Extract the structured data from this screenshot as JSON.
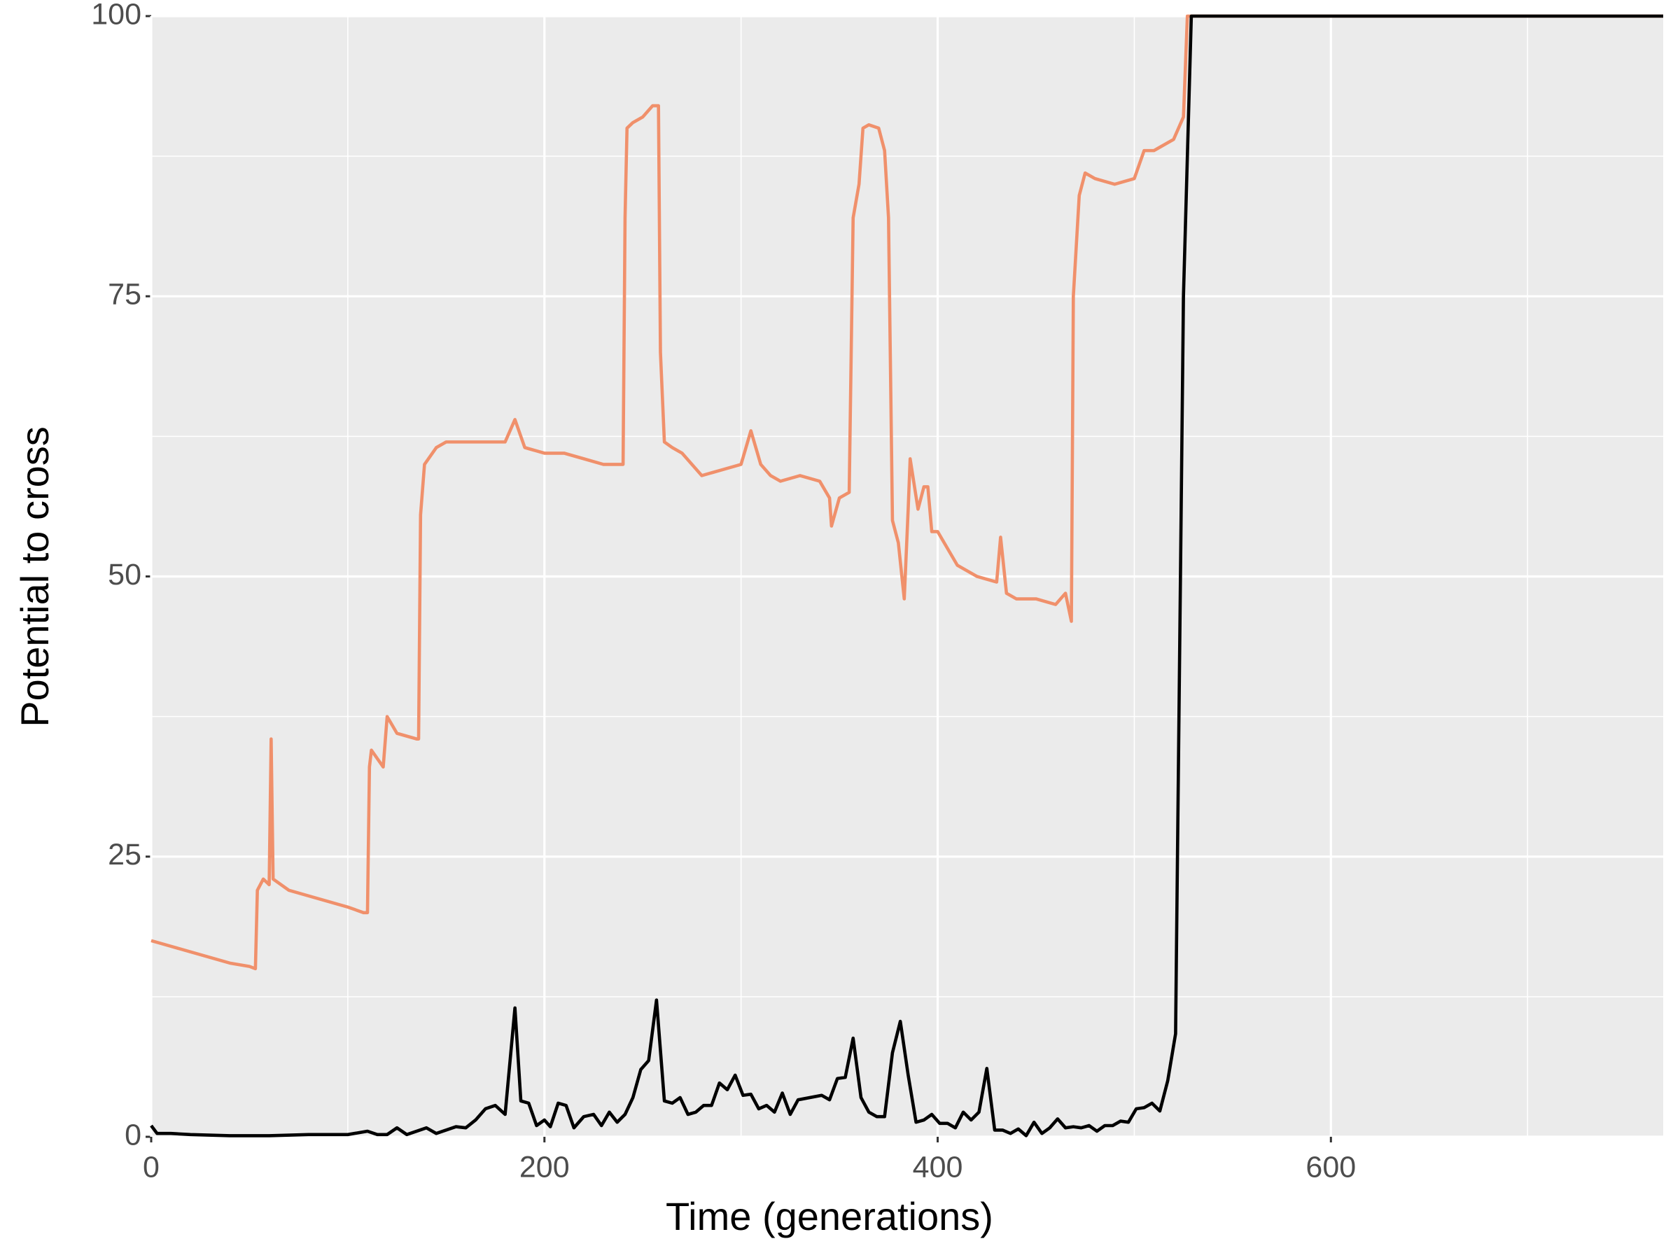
{
  "chart_data": {
    "type": "line",
    "x_label": "Time (generations)",
    "y_label": "Potential to cross",
    "xlim": [
      0,
      769
    ],
    "ylim": [
      0,
      100
    ],
    "xticks": [
      0,
      200,
      400,
      600
    ],
    "yticks": [
      0,
      25,
      50,
      75,
      100
    ],
    "grid": true,
    "series": [
      {
        "color": "#f0906b",
        "x": [
          0,
          10,
          20,
          30,
          40,
          50,
          53,
          54,
          57,
          60,
          61,
          62,
          70,
          80,
          90,
          100,
          108,
          110,
          111,
          112,
          118,
          120,
          125,
          135,
          136,
          137,
          139,
          145,
          150,
          160,
          170,
          180,
          185,
          190,
          200,
          210,
          220,
          230,
          240,
          241,
          242,
          245,
          250,
          255,
          258,
          259,
          261,
          265,
          270,
          280,
          290,
          300,
          305,
          310,
          315,
          320,
          330,
          340,
          345,
          346,
          350,
          355,
          357,
          360,
          362,
          365,
          370,
          373,
          375,
          377,
          380,
          383,
          385,
          386,
          390,
          393,
          395,
          397,
          400,
          405,
          410,
          420,
          430,
          432,
          435,
          440,
          450,
          460,
          465,
          468,
          469,
          472,
          475,
          480,
          490,
          500,
          505,
          510,
          520,
          525,
          527,
          769
        ],
        "values": [
          17.5,
          17,
          16.5,
          16,
          15.5,
          15.2,
          15,
          22,
          23,
          22.5,
          35.5,
          23,
          22,
          21.5,
          21,
          20.5,
          20,
          20,
          33,
          34.5,
          33,
          37.5,
          36,
          35.5,
          35.5,
          55.5,
          60,
          61.5,
          62,
          62,
          62,
          62,
          64,
          61.5,
          61,
          61,
          60.5,
          60,
          60,
          82,
          90,
          90.5,
          91,
          92,
          92,
          70,
          62,
          61.5,
          61,
          59,
          59.5,
          60,
          63,
          60,
          59,
          58.5,
          59,
          58.5,
          57,
          54.5,
          57,
          57.5,
          82,
          85,
          90,
          90.3,
          90,
          88,
          82,
          55,
          53,
          48,
          56,
          60.5,
          56,
          58,
          58,
          54,
          54,
          52.5,
          51,
          50,
          49.5,
          53.5,
          48.5,
          48,
          48,
          47.5,
          48.5,
          46,
          75,
          84,
          86,
          85.5,
          85,
          85.5,
          88,
          88,
          89,
          91,
          100,
          100
        ]
      },
      {
        "color": "#000000",
        "x": [
          0,
          3,
          10,
          20,
          40,
          60,
          80,
          100,
          110,
          115,
          120,
          125,
          130,
          140,
          145,
          155,
          160,
          165,
          170,
          175,
          180,
          185,
          188,
          192,
          196,
          200,
          203,
          207,
          211,
          215,
          220,
          225,
          229,
          233,
          237,
          241,
          245,
          249,
          253,
          257,
          261,
          265,
          269,
          273,
          277,
          281,
          285,
          289,
          293,
          297,
          301,
          305,
          309,
          313,
          317,
          321,
          325,
          329,
          341,
          345,
          349,
          353,
          357,
          361,
          365,
          369,
          373,
          377,
          381,
          385,
          389,
          393,
          397,
          401,
          405,
          409,
          413,
          417,
          421,
          425,
          429,
          433,
          437,
          441,
          445,
          449,
          453,
          457,
          461,
          465,
          469,
          473,
          477,
          481,
          485,
          489,
          493,
          497,
          501,
          505,
          509,
          513,
          517,
          521,
          525,
          529,
          769
        ],
        "values": [
          1,
          0.3,
          0.3,
          0.2,
          0.1,
          0.1,
          0.2,
          0.2,
          0.5,
          0.2,
          0.2,
          0.8,
          0.2,
          0.8,
          0.3,
          0.9,
          0.8,
          1.5,
          2.5,
          2.8,
          2,
          11.5,
          3.2,
          3,
          1,
          1.5,
          0.9,
          3,
          2.8,
          0.8,
          1.8,
          2,
          1,
          2.2,
          1.3,
          2,
          3.5,
          6,
          6.8,
          12.2,
          3.2,
          3,
          3.5,
          2,
          2.2,
          2.8,
          2.8,
          4.8,
          4.2,
          5.5,
          3.7,
          3.8,
          2.5,
          2.8,
          2.2,
          3.9,
          2,
          3.3,
          3.7,
          3.3,
          5.2,
          5.3,
          8.8,
          3.5,
          2.2,
          1.8,
          1.8,
          7.5,
          10.3,
          5.5,
          1.3,
          1.5,
          2,
          1.2,
          1.2,
          0.8,
          2.2,
          1.5,
          2.2,
          6.1,
          0.6,
          0.6,
          0.3,
          0.7,
          0.1,
          1.3,
          0.3,
          0.8,
          1.6,
          0.8,
          0.9,
          0.8,
          1,
          0.5,
          1,
          1,
          1.4,
          1.3,
          2.5,
          2.6,
          3,
          2.3,
          5,
          9.2,
          75,
          100,
          100
        ]
      }
    ]
  }
}
